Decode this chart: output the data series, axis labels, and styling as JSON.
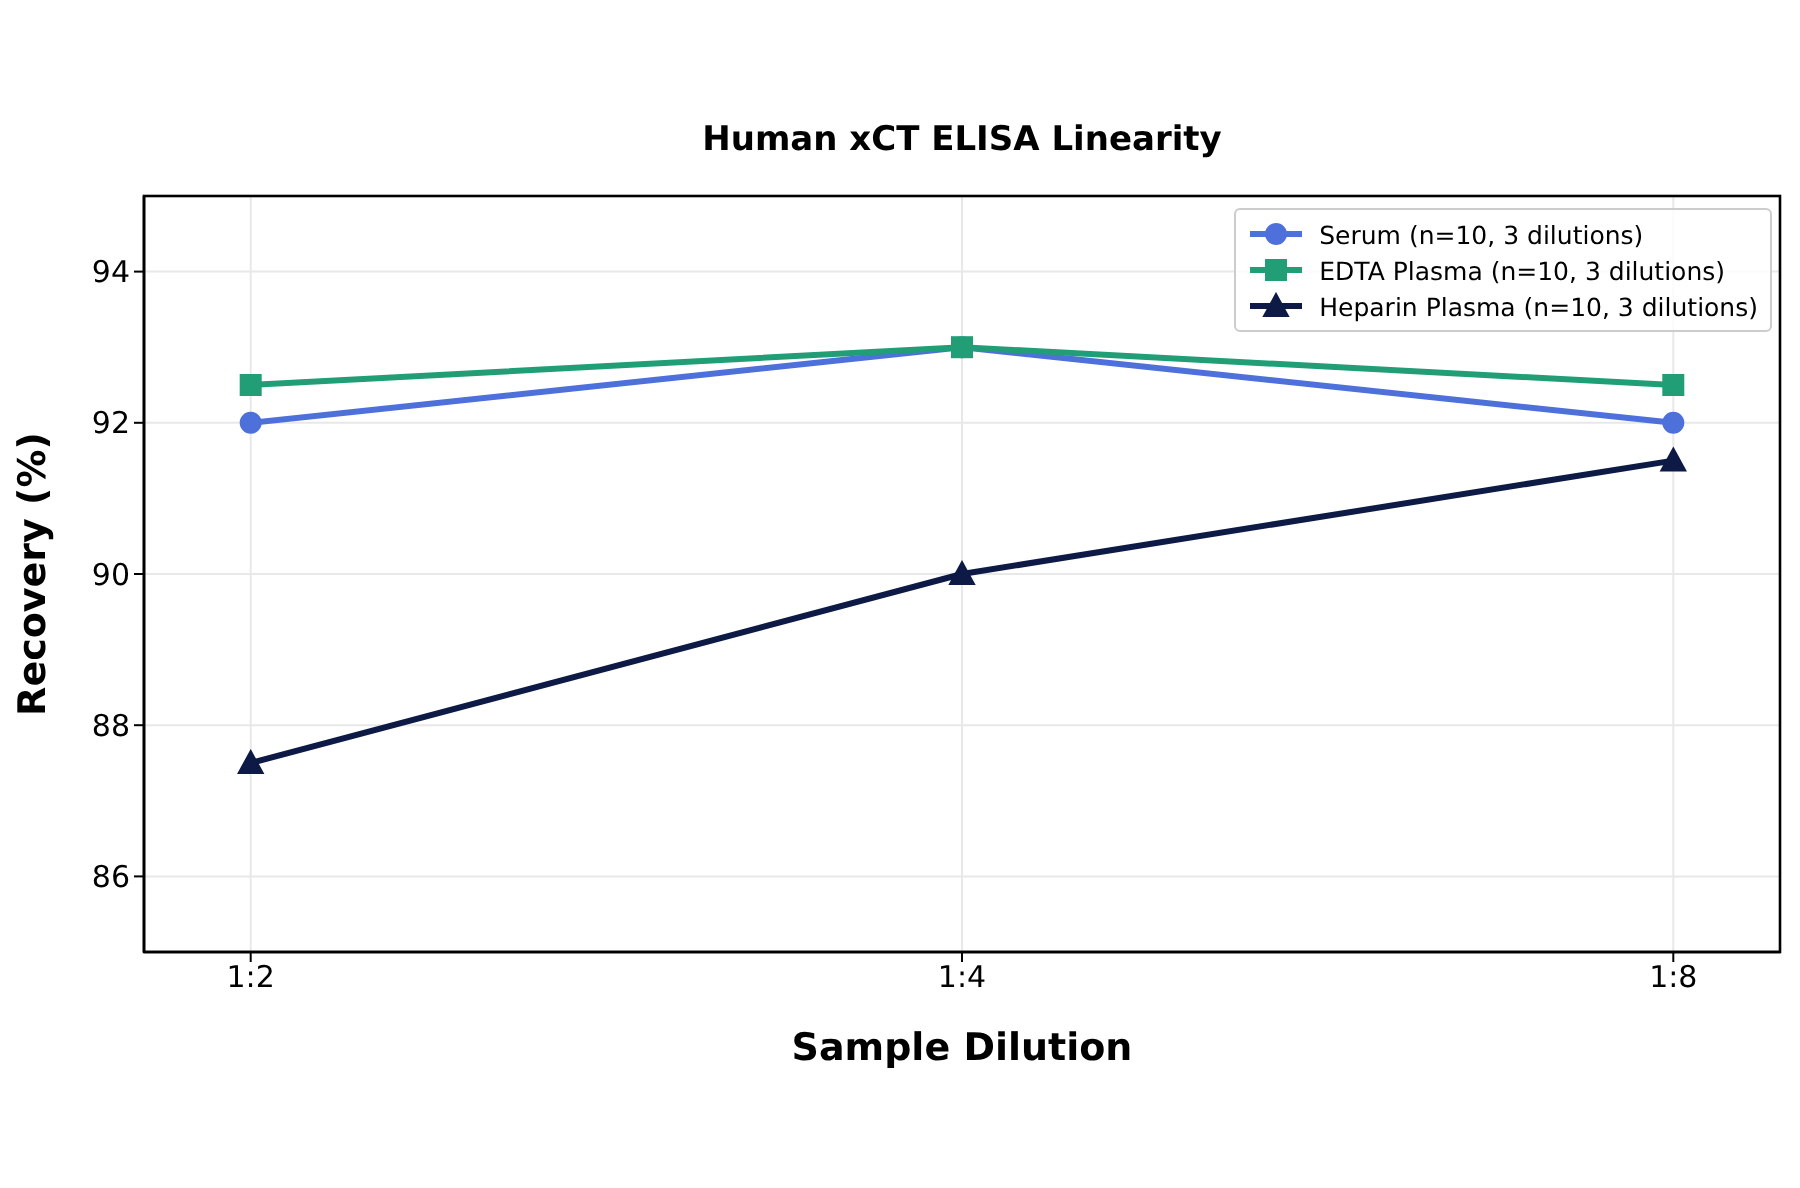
{
  "chart_data": {
    "type": "line",
    "title": "Human xCT ELISA Linearity",
    "xlabel": "Sample Dilution",
    "ylabel": "Recovery (%)",
    "categories": [
      "1:2",
      "1:4",
      "1:8"
    ],
    "series": [
      {
        "name": "Serum (n=10, 3 dilutions)",
        "color": "#4e70db",
        "marker": "circle",
        "values": [
          92,
          93,
          92
        ]
      },
      {
        "name": "EDTA Plasma (n=10, 3 dilutions)",
        "color": "#229e76",
        "marker": "square",
        "values": [
          92.5,
          93,
          92.5
        ]
      },
      {
        "name": "Heparin Plasma (n=10, 3 dilutions)",
        "color": "#0d1a45",
        "marker": "triangle",
        "values": [
          87.5,
          90,
          91.5
        ]
      }
    ],
    "ylim": [
      85,
      95
    ],
    "yticks": [
      86,
      88,
      90,
      92,
      94
    ],
    "grid": true,
    "legend": "top right",
    "line_style": "solid"
  }
}
